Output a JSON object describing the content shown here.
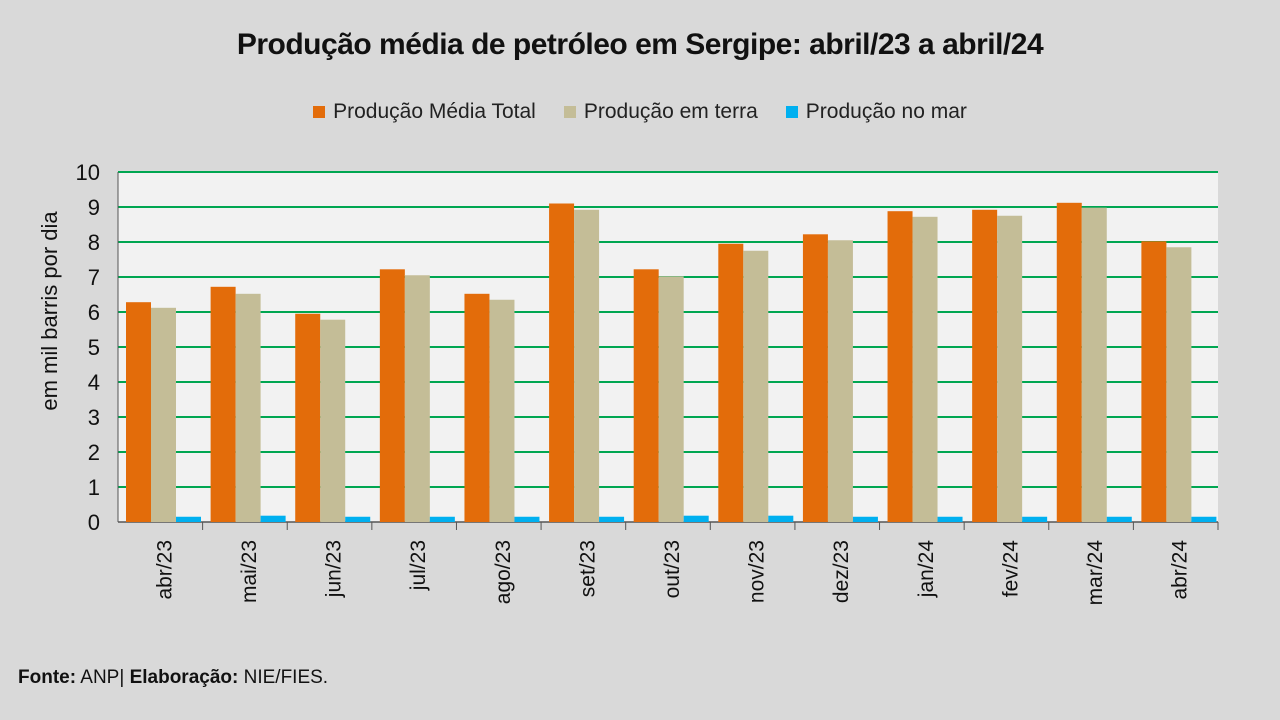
{
  "chart_data": {
    "type": "bar",
    "title": "Produção média de petróleo em Sergipe: abril/23 a abril/24",
    "ylabel": "em mil barris por dia",
    "xlabel": "",
    "ylim": [
      0,
      10
    ],
    "yticks": [
      "0",
      "1",
      "2",
      "3",
      "4",
      "5",
      "6",
      "7",
      "8",
      "9",
      "10"
    ],
    "legend_position": "top-center",
    "grid": true,
    "categories": [
      "abr/23",
      "mai/23",
      "jun/23",
      "jul/23",
      "ago/23",
      "set/23",
      "out/23",
      "nov/23",
      "dez/23",
      "jan/24",
      "fev/24",
      "mar/24",
      "abr/24"
    ],
    "series": [
      {
        "name": "Produção Média Total",
        "color": "#e36c0a",
        "values": [
          6.28,
          6.72,
          5.95,
          7.22,
          6.52,
          9.1,
          7.22,
          7.95,
          8.22,
          8.88,
          8.92,
          9.12,
          8.02
        ]
      },
      {
        "name": "Produção em terra",
        "color": "#c4bd97",
        "values": [
          6.12,
          6.52,
          5.78,
          7.05,
          6.35,
          8.92,
          7.02,
          7.75,
          8.05,
          8.72,
          8.75,
          8.98,
          7.85
        ]
      },
      {
        "name": "Produção no mar",
        "color": "#00b0f0",
        "values": [
          0.15,
          0.18,
          0.15,
          0.15,
          0.15,
          0.15,
          0.18,
          0.18,
          0.15,
          0.15,
          0.15,
          0.15,
          0.15
        ]
      }
    ]
  },
  "footer": {
    "fonte_label": "Fonte:",
    "fonte_value": "ANP|",
    "elaboracao_label": "Elaboração:",
    "elaboracao_value": "NIE/FIES."
  },
  "colors": {
    "background": "#d9d9d9",
    "plot_background": "#f2f2f2",
    "gridline": "#00a651"
  }
}
